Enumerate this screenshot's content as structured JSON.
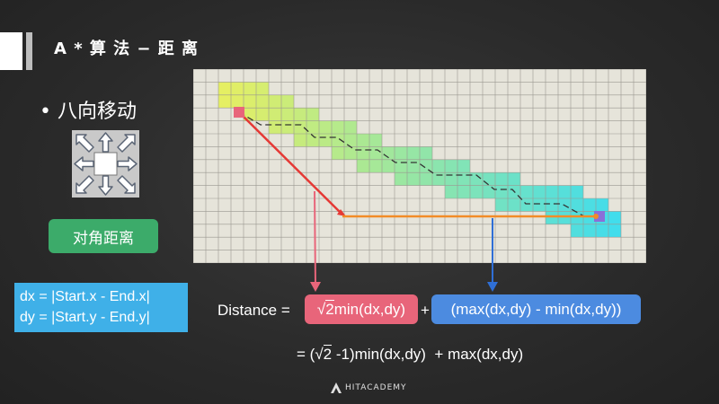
{
  "title": "A * 算 法 − 距 离",
  "bullet": "• 八向移动",
  "diagonal_button": "对角距离",
  "dx_line": "dx = |Start.x - End.x|",
  "dy_line": "dy = |Start.y - End.y|",
  "formula": {
    "label": "Distance =",
    "sqrt_sym": "√",
    "sqrt_num": "2",
    "pink_rest": "min(dx,dy)",
    "plus": "+",
    "blue_text": "(max(dx,dy) - min(dx,dy))",
    "line2_pre": "= (",
    "line2_post": " -1)min(dx,dy)  + max(dx,dy)"
  },
  "logo_text": "HITACADEMY",
  "colors": {
    "pink": "#e8657a",
    "blue": "#4c8be0",
    "green": "#3cab6a",
    "cyan": "#3fb0e8",
    "red_arrow": "#e53935",
    "orange_line": "#f28c28"
  }
}
